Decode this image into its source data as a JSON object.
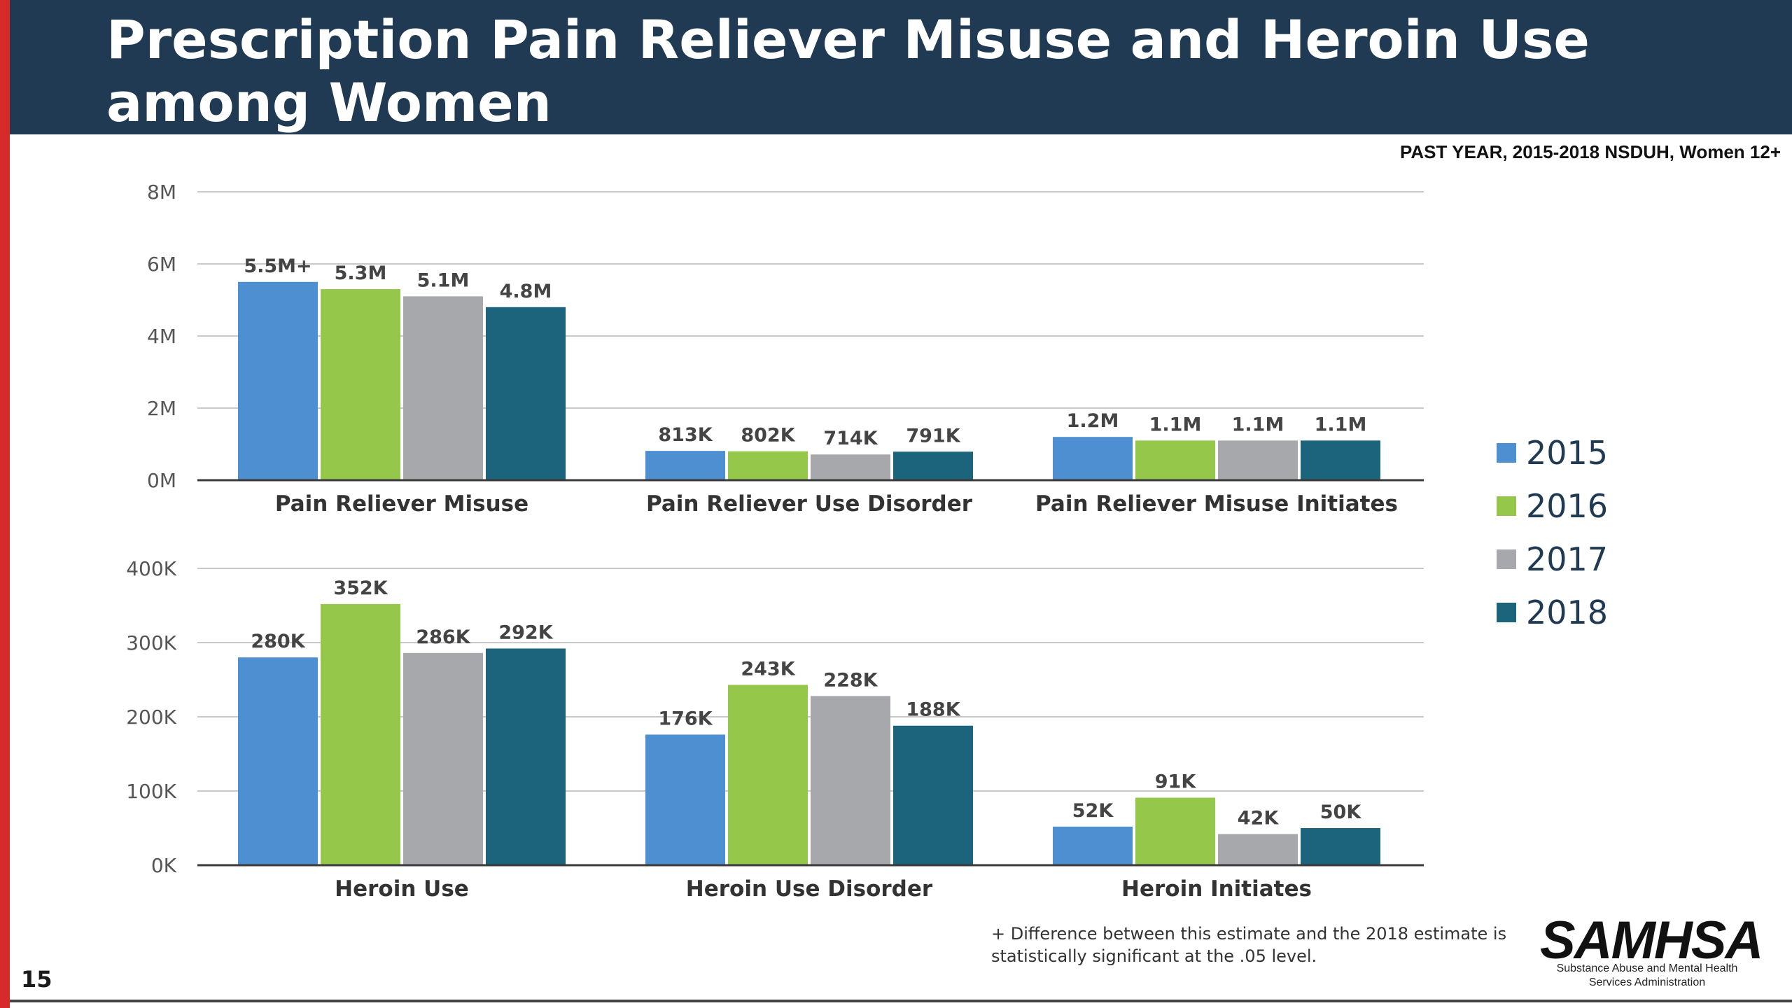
{
  "slide": {
    "title": "Prescription Pain Reliever Misuse and Heroin Use among Women",
    "subtitle": "PAST YEAR, 2015-2018 NSDUH, Women 12+",
    "footnote": "+ Difference between this estimate and the 2018 estimate is statistically significant at the .05 level.",
    "page_number": "15",
    "logo": {
      "text": "SAMHSA",
      "caption": "Substance Abuse and Mental Health Services Administration"
    }
  },
  "legend": [
    {
      "label": "2015",
      "color": "#4d8fd1"
    },
    {
      "label": "2016",
      "color": "#94c74a"
    },
    {
      "label": "2017",
      "color": "#a6a8ab"
    },
    {
      "label": "2018",
      "color": "#1b647c"
    }
  ],
  "chart_data": [
    {
      "type": "bar",
      "title": "",
      "categories": [
        "Pain Reliever Misuse",
        "Pain Reliever Use Disorder",
        "Pain Reliever Misuse Initiates"
      ],
      "ylim": [
        0,
        8000000
      ],
      "yticks": [
        0,
        2000000,
        4000000,
        6000000,
        8000000
      ],
      "ytick_labels": [
        "0M",
        "2M",
        "4M",
        "6M",
        "8M"
      ],
      "grid": true,
      "series": [
        {
          "name": "2015",
          "values": [
            5500000,
            813000,
            1200000
          ],
          "labels": [
            "5.5M+",
            "813K",
            "1.2M"
          ]
        },
        {
          "name": "2016",
          "values": [
            5300000,
            802000,
            1100000
          ],
          "labels": [
            "5.3M",
            "802K",
            "1.1M"
          ]
        },
        {
          "name": "2017",
          "values": [
            5100000,
            714000,
            1100000
          ],
          "labels": [
            "5.1M",
            "714K",
            "1.1M"
          ]
        },
        {
          "name": "2018",
          "values": [
            4800000,
            791000,
            1100000
          ],
          "labels": [
            "4.8M",
            "791K",
            "1.1M"
          ]
        }
      ]
    },
    {
      "type": "bar",
      "title": "",
      "categories": [
        "Heroin Use",
        "Heroin Use Disorder",
        "Heroin Initiates"
      ],
      "ylim": [
        0,
        400000
      ],
      "yticks": [
        0,
        100000,
        200000,
        300000,
        400000
      ],
      "ytick_labels": [
        "0K",
        "100K",
        "200K",
        "300K",
        "400K"
      ],
      "grid": true,
      "series": [
        {
          "name": "2015",
          "values": [
            280000,
            176000,
            52000
          ],
          "labels": [
            "280K",
            "176K",
            "52K"
          ]
        },
        {
          "name": "2016",
          "values": [
            352000,
            243000,
            91000
          ],
          "labels": [
            "352K",
            "243K",
            "91K"
          ]
        },
        {
          "name": "2017",
          "values": [
            286000,
            228000,
            42000
          ],
          "labels": [
            "286K",
            "228K",
            "42K"
          ]
        },
        {
          "name": "2018",
          "values": [
            292000,
            188000,
            50000
          ],
          "labels": [
            "292K",
            "188K",
            "50K"
          ]
        }
      ]
    }
  ]
}
